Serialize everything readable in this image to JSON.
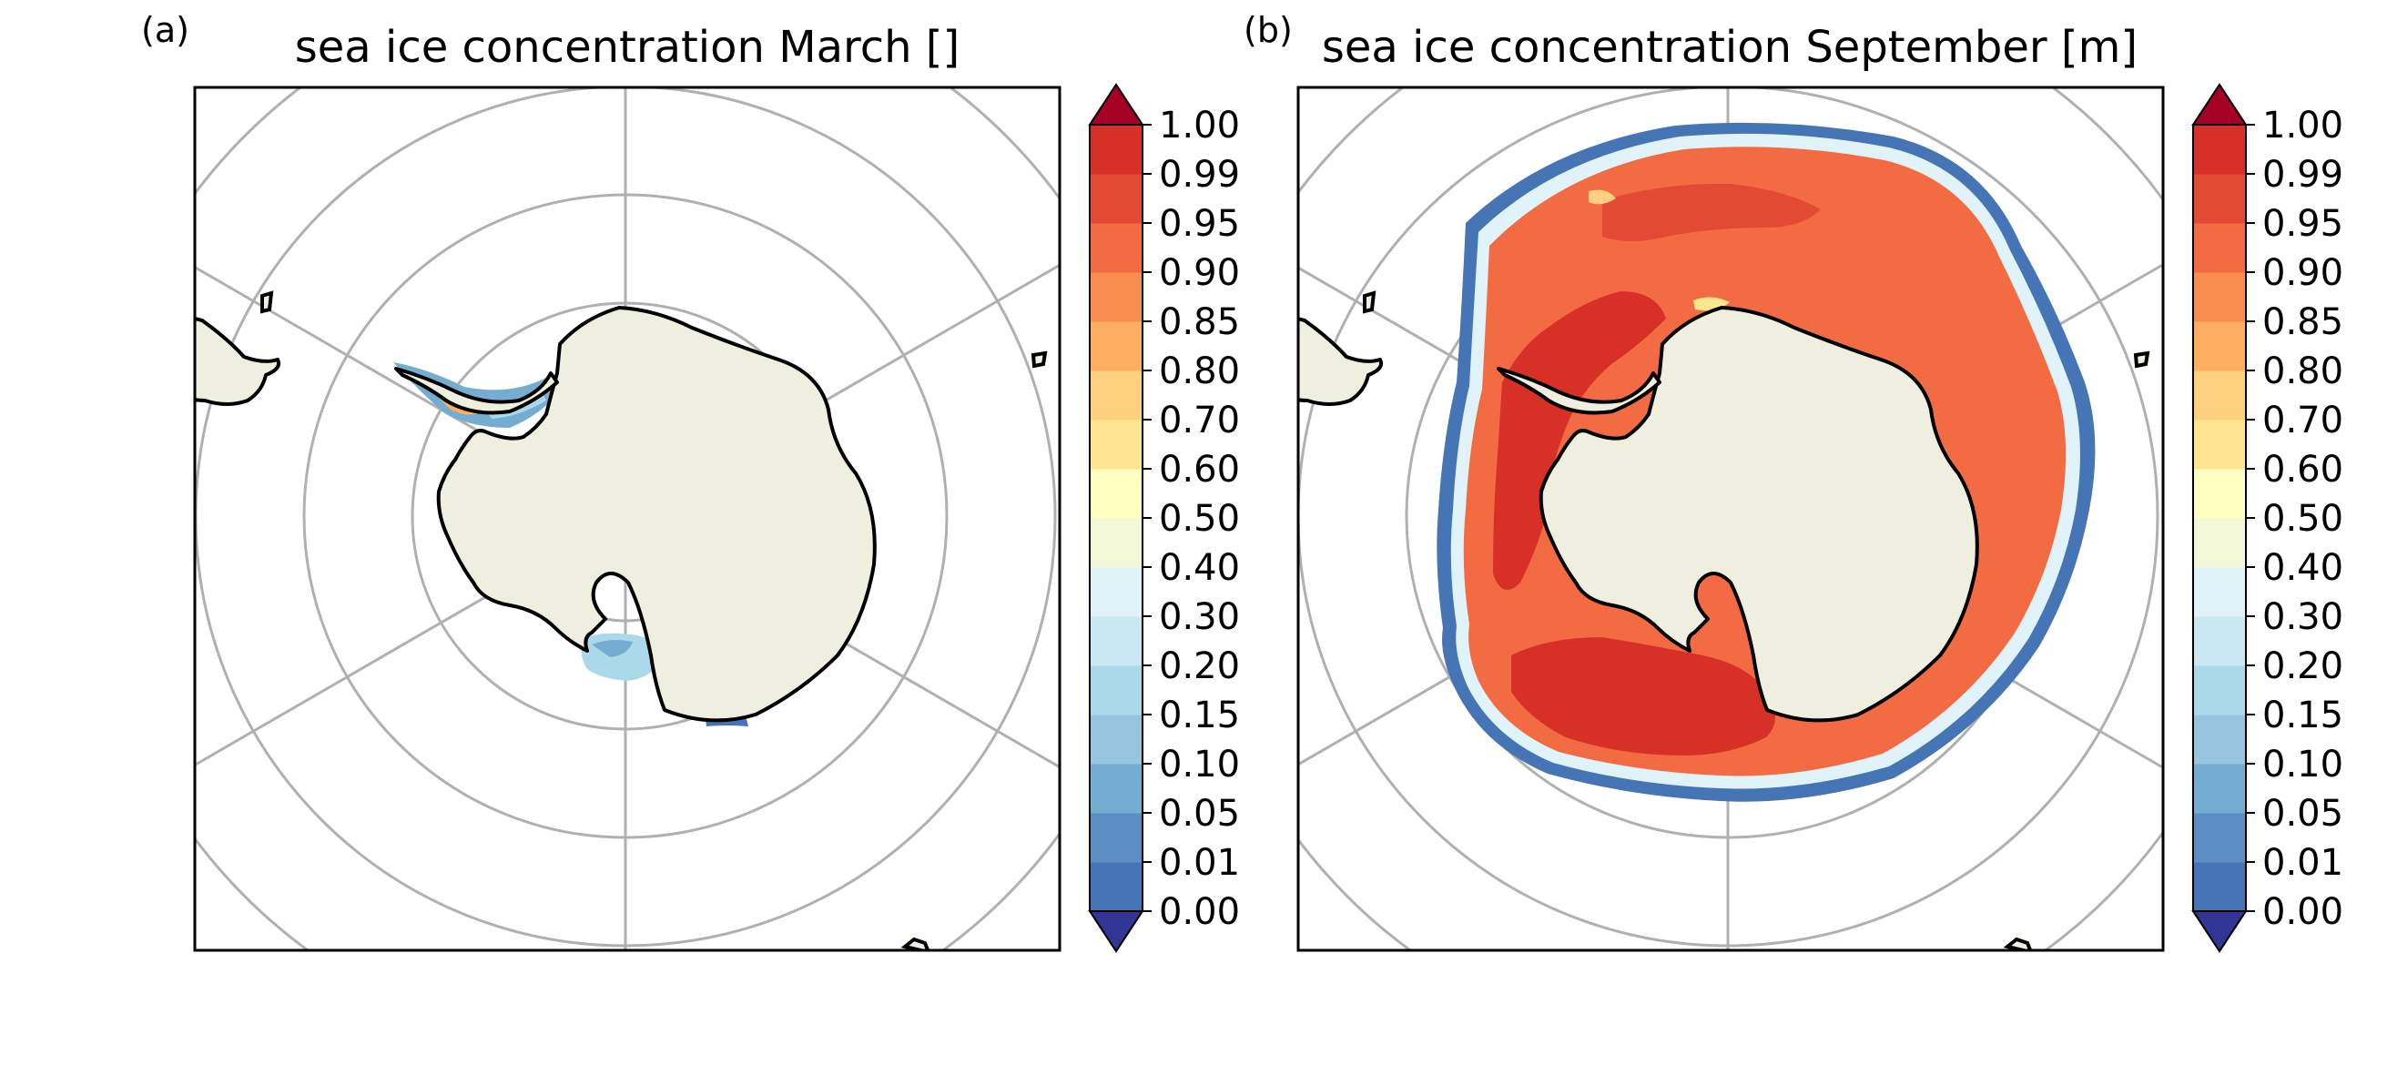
{
  "colors": {
    "land": "#efefdf",
    "coast": "#000000",
    "grid": "#b0b0b0",
    "frame": "#000000",
    "levels": [
      "#313695",
      "#4575b4",
      "#5b8fc2",
      "#74add1",
      "#96c6df",
      "#abd9e9",
      "#c9e8f1",
      "#e0f3f8",
      "#f3f9d8",
      "#ffffbf",
      "#fee690",
      "#fed080",
      "#fdae61",
      "#f88d52",
      "#f26b43",
      "#e34a33",
      "#d73027",
      "#c2232b",
      "#a50026"
    ]
  },
  "colorbar": {
    "tick_labels": [
      "0.00",
      "0.01",
      "0.05",
      "0.10",
      "0.15",
      "0.20",
      "0.30",
      "0.40",
      "0.50",
      "0.60",
      "0.70",
      "0.80",
      "0.85",
      "0.90",
      "0.95",
      "0.99",
      "1.00"
    ]
  },
  "panels": [
    {
      "label": "(a)",
      "title": "sea ice concentration March []",
      "month": "March"
    },
    {
      "label": "(b)",
      "title": "sea ice concentration September [m]",
      "month": "September"
    }
  ]
}
